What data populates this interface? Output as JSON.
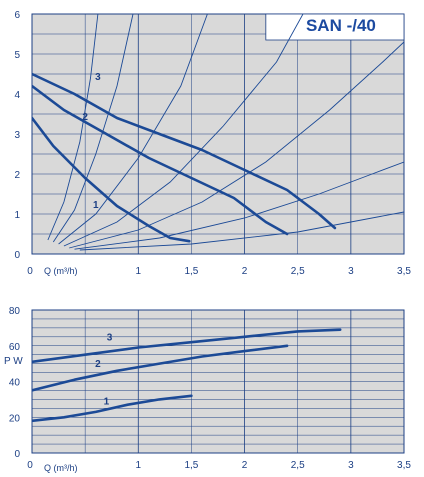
{
  "chart_data": [
    {
      "type": "line",
      "title": "SAN -/40",
      "xlabel": "Q (m³/h)",
      "ylabel": "",
      "xlim": [
        0,
        3.5
      ],
      "ylim": [
        0,
        6
      ],
      "x_ticks": [
        "0",
        "1",
        "1,5",
        "2",
        "2,5",
        "3",
        "3,5"
      ],
      "y_ticks": [
        "0",
        "1",
        "2",
        "3",
        "4",
        "5",
        "6"
      ],
      "grid": true,
      "background": "#d9d9d9",
      "line_color": "#1c4a96",
      "series": [
        {
          "name": "1",
          "points": [
            [
              0.0,
              3.4
            ],
            [
              0.2,
              2.7
            ],
            [
              0.5,
              1.9
            ],
            [
              0.8,
              1.2
            ],
            [
              1.1,
              0.7
            ],
            [
              1.3,
              0.4
            ],
            [
              1.48,
              0.32
            ]
          ]
        },
        {
          "name": "2",
          "points": [
            [
              0.0,
              4.2
            ],
            [
              0.3,
              3.6
            ],
            [
              0.7,
              3.0
            ],
            [
              1.1,
              2.4
            ],
            [
              1.5,
              1.9
            ],
            [
              1.9,
              1.4
            ],
            [
              2.2,
              0.8
            ],
            [
              2.4,
              0.5
            ]
          ]
        },
        {
          "name": "3",
          "points": [
            [
              0.0,
              4.5
            ],
            [
              0.4,
              4.0
            ],
            [
              0.8,
              3.4
            ],
            [
              1.2,
              3.0
            ],
            [
              1.6,
              2.6
            ],
            [
              2.0,
              2.1
            ],
            [
              2.4,
              1.6
            ],
            [
              2.7,
              1.0
            ],
            [
              2.85,
              0.65
            ]
          ]
        }
      ],
      "reference_curves": [
        [
          [
            0.15,
            0.35
          ],
          [
            0.3,
            1.3
          ],
          [
            0.45,
            2.8
          ],
          [
            0.55,
            4.4
          ],
          [
            0.62,
            6.0
          ]
        ],
        [
          [
            0.2,
            0.3
          ],
          [
            0.4,
            1.1
          ],
          [
            0.6,
            2.5
          ],
          [
            0.8,
            4.2
          ],
          [
            0.95,
            6.0
          ]
        ],
        [
          [
            0.25,
            0.25
          ],
          [
            0.6,
            1.0
          ],
          [
            1.0,
            2.4
          ],
          [
            1.4,
            4.2
          ],
          [
            1.65,
            6.0
          ]
        ],
        [
          [
            0.3,
            0.2
          ],
          [
            0.8,
            0.8
          ],
          [
            1.3,
            1.8
          ],
          [
            1.8,
            3.2
          ],
          [
            2.3,
            4.8
          ],
          [
            2.55,
            6.0
          ]
        ],
        [
          [
            0.35,
            0.15
          ],
          [
            1.0,
            0.6
          ],
          [
            1.6,
            1.3
          ],
          [
            2.2,
            2.3
          ],
          [
            2.8,
            3.6
          ],
          [
            3.3,
            4.8
          ],
          [
            3.5,
            5.3
          ]
        ],
        [
          [
            0.4,
            0.12
          ],
          [
            1.2,
            0.4
          ],
          [
            2.0,
            0.9
          ],
          [
            2.7,
            1.5
          ],
          [
            3.2,
            2.0
          ],
          [
            3.5,
            2.3
          ]
        ],
        [
          [
            0.45,
            0.1
          ],
          [
            1.5,
            0.25
          ],
          [
            2.5,
            0.55
          ],
          [
            3.5,
            1.05
          ]
        ]
      ],
      "annotations": [
        {
          "text": "1",
          "x": 0.6,
          "y": 1.15
        },
        {
          "text": "2",
          "x": 0.5,
          "y": 3.35
        },
        {
          "text": "3",
          "x": 0.62,
          "y": 4.35
        }
      ]
    },
    {
      "type": "line",
      "title": "",
      "xlabel": "Q (m³/h)",
      "ylabel": "P W",
      "xlim": [
        0,
        3.5
      ],
      "ylim": [
        0,
        80
      ],
      "x_ticks": [
        "0",
        "1",
        "1,5",
        "2",
        "2,5",
        "3",
        "3,5"
      ],
      "y_ticks": [
        "0",
        "20",
        "40",
        "60",
        "80"
      ],
      "grid": true,
      "background": "#d9d9d9",
      "line_color": "#1c4a96",
      "series": [
        {
          "name": "1",
          "points": [
            [
              0.0,
              18
            ],
            [
              0.3,
              20
            ],
            [
              0.6,
              23
            ],
            [
              0.9,
              27
            ],
            [
              1.2,
              30
            ],
            [
              1.5,
              32
            ]
          ]
        },
        {
          "name": "2",
          "points": [
            [
              0.0,
              35
            ],
            [
              0.4,
              41
            ],
            [
              0.8,
              46
            ],
            [
              1.2,
              50
            ],
            [
              1.6,
              54
            ],
            [
              2.0,
              57
            ],
            [
              2.4,
              60
            ]
          ]
        },
        {
          "name": "3",
          "points": [
            [
              0.0,
              51
            ],
            [
              0.5,
              55
            ],
            [
              1.0,
              59
            ],
            [
              1.5,
              62
            ],
            [
              2.0,
              65
            ],
            [
              2.5,
              68
            ],
            [
              2.9,
              69
            ]
          ]
        }
      ],
      "annotations": [
        {
          "text": "1",
          "x": 0.7,
          "y": 27
        },
        {
          "text": "2",
          "x": 0.62,
          "y": 48
        },
        {
          "text": "3",
          "x": 0.73,
          "y": 63
        }
      ]
    }
  ]
}
